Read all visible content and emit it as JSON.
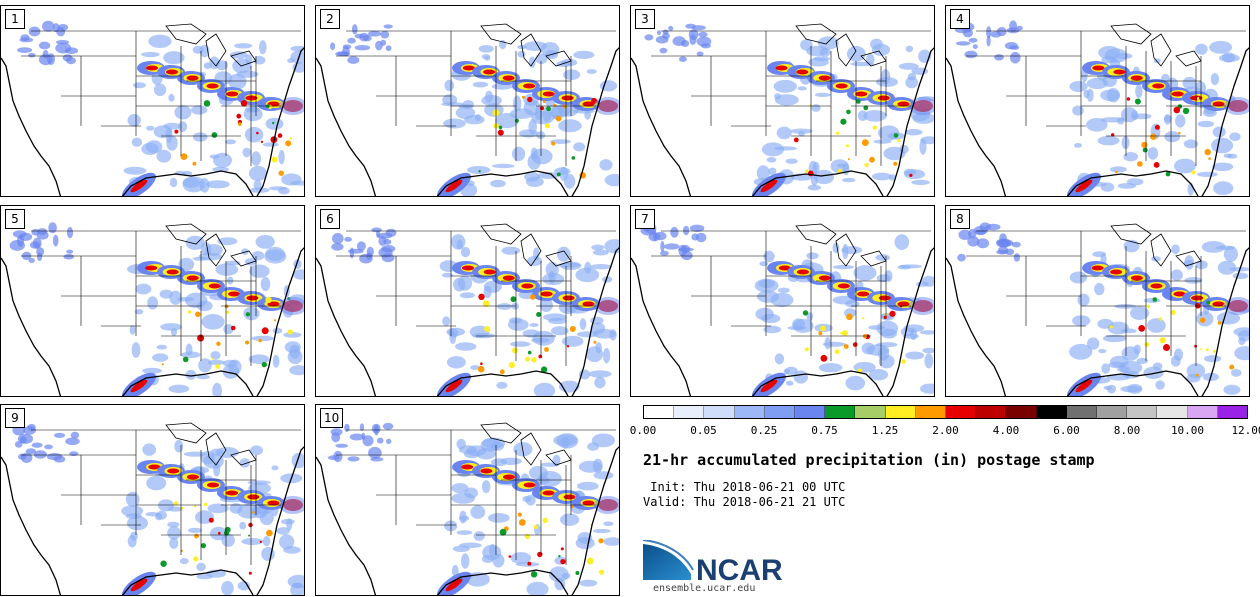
{
  "panels": [
    {
      "label": "1"
    },
    {
      "label": "2"
    },
    {
      "label": "3"
    },
    {
      "label": "4"
    },
    {
      "label": "5"
    },
    {
      "label": "6"
    },
    {
      "label": "7"
    },
    {
      "label": "8"
    },
    {
      "label": "9"
    },
    {
      "label": "10"
    }
  ],
  "colorbar": {
    "colors": [
      "#ffffff",
      "#e8eefc",
      "#cfdcfa",
      "#9cb8f6",
      "#7f9df3",
      "#6a85ef",
      "#0a9a2a",
      "#a6cd66",
      "#ffef22",
      "#ff9a00",
      "#e70000",
      "#bd0000",
      "#7a0000",
      "#000000",
      "#707070",
      "#a0a0a0",
      "#c4c4c4",
      "#e6e6e6",
      "#d8a6f2",
      "#9a21e6"
    ],
    "ticks": [
      "0.00",
      "0.05",
      "0.25",
      "0.75",
      "1.25",
      "2.00",
      "4.00",
      "6.00",
      "8.00",
      "10.00",
      "12.00"
    ]
  },
  "title": "21-hr accumulated precipitation (in) postage stamp",
  "init": " Init: Thu 2018-06-21 00 UTC",
  "valid": "Valid: Thu 2018-06-21 21 UTC",
  "logo": {
    "text": "NCAR",
    "url": "ensemble.ucar.edu",
    "brand_color": "#1a5a8e",
    "text_color": "#1c3f72"
  }
}
